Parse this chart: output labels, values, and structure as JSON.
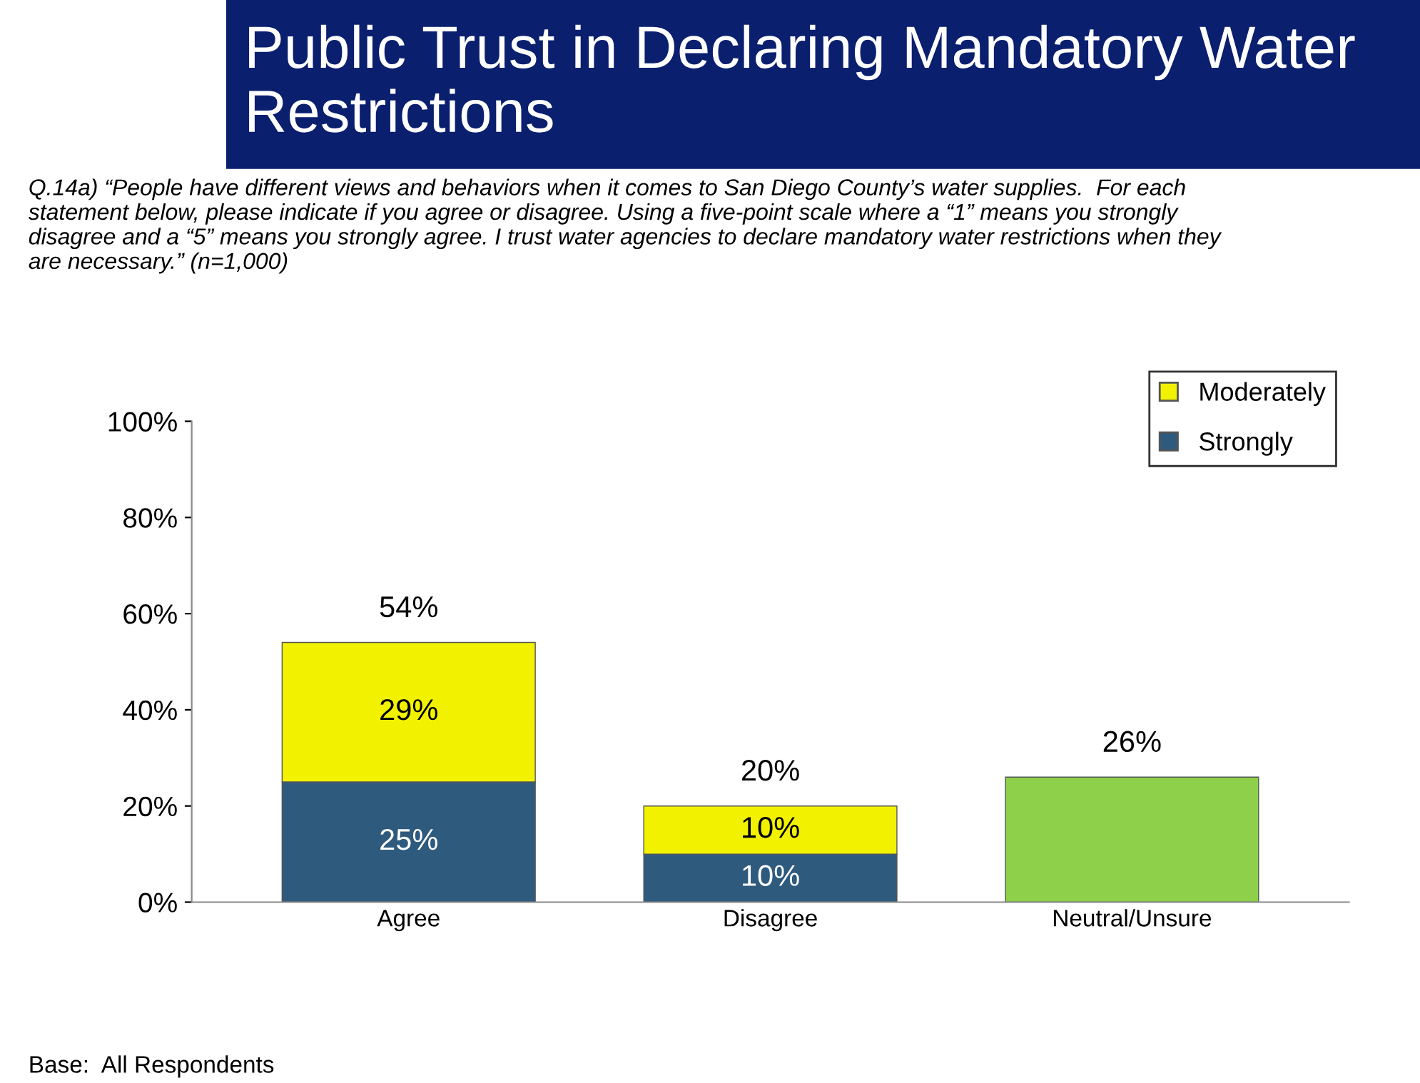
{
  "chart_data": {
    "type": "bar",
    "title": "Public Trust in Declaring Mandatory Water Restrictions",
    "subtitle": "Q.14a) “People have different views and behaviors when it comes to San Diego County’s water supplies.  For each statement below, please indicate if you agree or disagree. Using a five-point scale where a “1” means you strongly disagree and a “5” means you strongly agree. I trust water agencies to declare mandatory water restrictions when they are necessary.” (n=1,000)",
    "annotations": [
      "Base:  All Respondents"
    ],
    "categories": [
      "Agree",
      "Disagree",
      "Neutral/Unsure"
    ],
    "stacked": true,
    "series": [
      {
        "name": "Strongly",
        "color": "#2e5a7e",
        "values": [
          25,
          10,
          null
        ],
        "value_labels": [
          "25%",
          "10%",
          null
        ]
      },
      {
        "name": "Moderately",
        "color": "#f2f200",
        "values": [
          29,
          10,
          null
        ],
        "value_labels": [
          "29%",
          "10%",
          null
        ]
      },
      {
        "color": "#8ed04a",
        "values": [
          null,
          null,
          26
        ]
      }
    ],
    "totals": [
      "54%",
      "20%",
      "26%"
    ],
    "ylim": [
      0,
      100
    ],
    "yticks": [
      {
        "value": 0,
        "label": "0%"
      },
      {
        "value": 20,
        "label": "20%"
      },
      {
        "value": 40,
        "label": "40%"
      },
      {
        "value": 60,
        "label": "60%"
      },
      {
        "value": 80,
        "label": "80%"
      },
      {
        "value": 100,
        "label": "100%"
      }
    ],
    "grid": false,
    "legend": "top right"
  }
}
